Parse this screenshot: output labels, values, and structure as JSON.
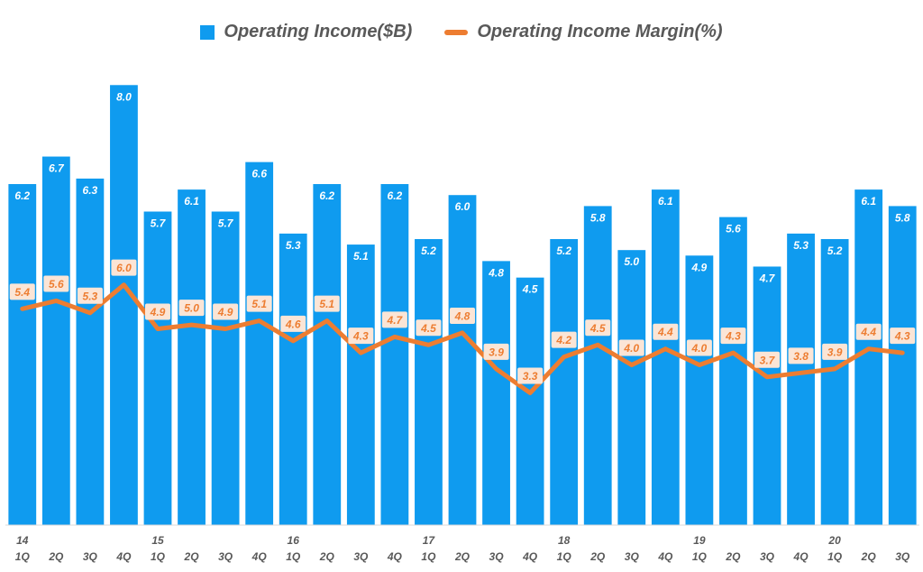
{
  "chart_data": {
    "type": "bar+line",
    "title": "",
    "xlabel": "",
    "ylabel": "",
    "legend_position": "top-center",
    "grid": false,
    "colors": {
      "bar": "#0F9BEF",
      "line": "#ED7D31",
      "line_label_bg": "#FBE5D6",
      "text": "#595959"
    },
    "legend": [
      {
        "name": "Operating Income($B)",
        "kind": "bar"
      },
      {
        "name": "Operating Income Margin(%)",
        "kind": "line"
      }
    ],
    "categories": [
      "1Q",
      "2Q",
      "3Q",
      "4Q",
      "1Q",
      "2Q",
      "3Q",
      "4Q",
      "1Q",
      "2Q",
      "3Q",
      "4Q",
      "1Q",
      "2Q",
      "3Q",
      "4Q",
      "1Q",
      "2Q",
      "3Q",
      "4Q",
      "1Q",
      "2Q",
      "3Q",
      "4Q",
      "1Q",
      "2Q",
      "3Q"
    ],
    "year_labels": [
      "14",
      "",
      "",
      "",
      "15",
      "",
      "",
      "",
      "16",
      "",
      "",
      "",
      "17",
      "",
      "",
      "",
      "18",
      "",
      "",
      "",
      "19",
      "",
      "",
      "",
      "20",
      "",
      ""
    ],
    "series": [
      {
        "name": "Operating Income($B)",
        "type": "bar",
        "values": [
          6.2,
          6.7,
          6.3,
          8.0,
          5.7,
          6.1,
          5.7,
          6.6,
          5.3,
          6.2,
          5.1,
          6.2,
          5.2,
          6.0,
          4.8,
          4.5,
          5.2,
          5.8,
          5.0,
          6.1,
          4.9,
          5.6,
          4.7,
          5.3,
          5.2,
          6.1,
          5.8
        ],
        "ylim": [
          0,
          8.3
        ]
      },
      {
        "name": "Operating Income Margin(%)",
        "type": "line",
        "values": [
          5.4,
          5.6,
          5.3,
          6.0,
          4.9,
          5.0,
          4.9,
          5.1,
          4.6,
          5.1,
          4.3,
          4.7,
          4.5,
          4.8,
          3.9,
          3.3,
          4.2,
          4.5,
          4.0,
          4.4,
          4.0,
          4.3,
          3.7,
          3.8,
          3.9,
          4.4,
          4.3
        ],
        "ylim": [
          0,
          11.4
        ]
      }
    ]
  }
}
